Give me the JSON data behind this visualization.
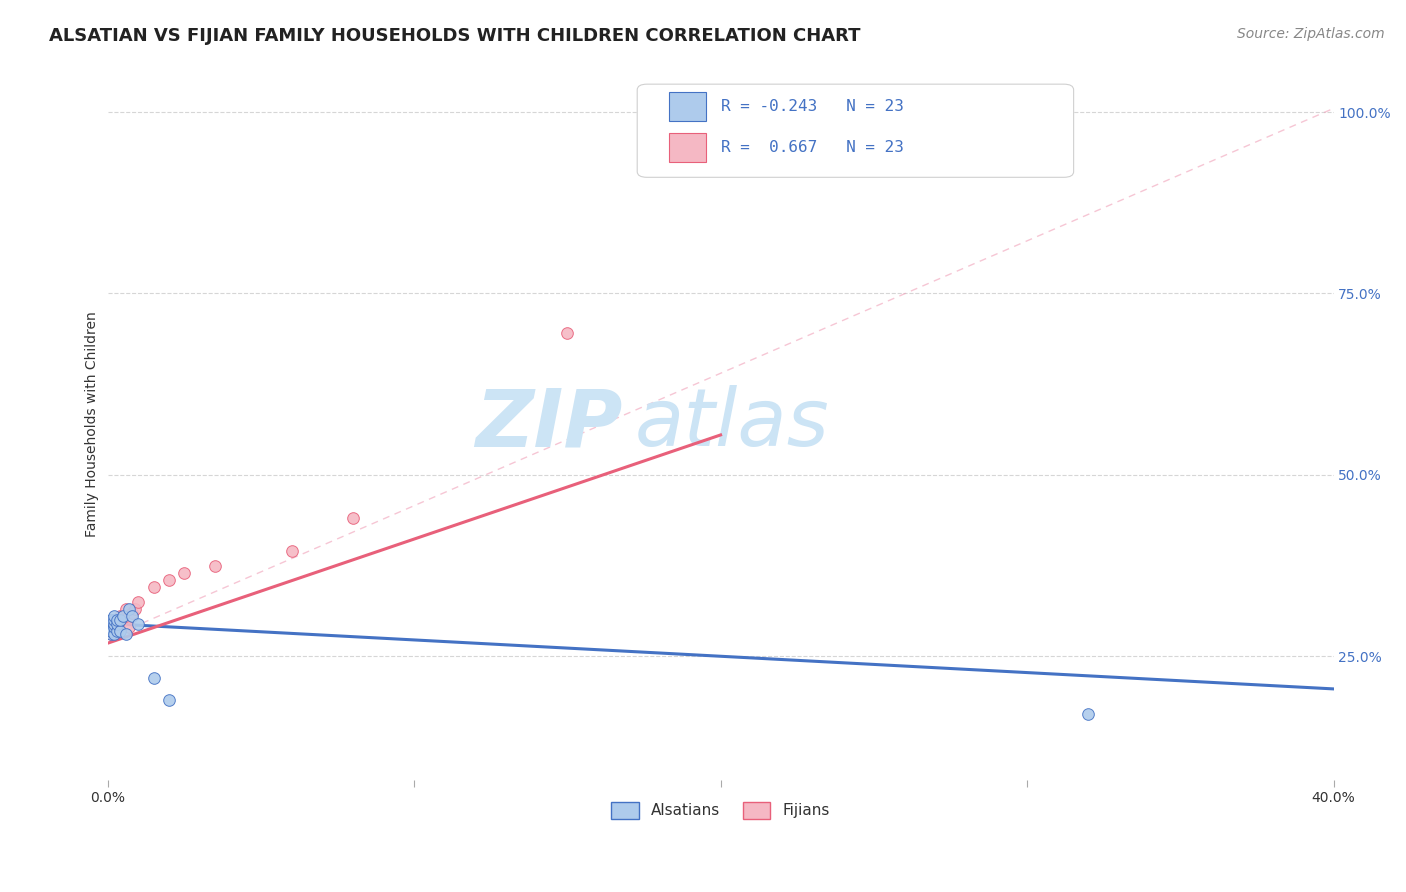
{
  "title": "ALSATIAN VS FIJIAN FAMILY HOUSEHOLDS WITH CHILDREN CORRELATION CHART",
  "source": "Source: ZipAtlas.com",
  "ylabel": "Family Households with Children",
  "xlim": [
    0.0,
    0.4
  ],
  "ylim": [
    0.08,
    1.06
  ],
  "xticks": [
    0.0,
    0.1,
    0.2,
    0.3,
    0.4
  ],
  "xtick_labels": [
    "0.0%",
    "",
    "",
    "",
    "40.0%"
  ],
  "yticks_right": [
    0.25,
    0.5,
    0.75,
    1.0
  ],
  "ytick_labels_right": [
    "25.0%",
    "50.0%",
    "75.0%",
    "100.0%"
  ],
  "r_alsatian": -0.243,
  "r_fijian": 0.667,
  "n_alsatian": 23,
  "n_fijian": 23,
  "alsatian_color": "#aecbec",
  "fijian_color": "#f5b8c4",
  "alsatian_line_color": "#4472c4",
  "fijian_line_color": "#e8607a",
  "legend_label_alsatian": "Alsatians",
  "legend_label_fijian": "Fijians",
  "alsatian_scatter_x": [
    0.001,
    0.001,
    0.001,
    0.001,
    0.001,
    0.002,
    0.002,
    0.002,
    0.002,
    0.002,
    0.003,
    0.003,
    0.003,
    0.004,
    0.004,
    0.005,
    0.006,
    0.007,
    0.008,
    0.01,
    0.015,
    0.02,
    0.32
  ],
  "alsatian_scatter_y": [
    0.28,
    0.29,
    0.3,
    0.285,
    0.3,
    0.28,
    0.29,
    0.295,
    0.3,
    0.305,
    0.285,
    0.295,
    0.3,
    0.285,
    0.3,
    0.305,
    0.28,
    0.315,
    0.305,
    0.295,
    0.22,
    0.19,
    0.17
  ],
  "fijian_scatter_x": [
    0.001,
    0.001,
    0.001,
    0.002,
    0.002,
    0.002,
    0.003,
    0.003,
    0.004,
    0.004,
    0.005,
    0.006,
    0.007,
    0.008,
    0.009,
    0.01,
    0.015,
    0.02,
    0.025,
    0.035,
    0.06,
    0.08,
    0.15
  ],
  "fijian_scatter_y": [
    0.28,
    0.285,
    0.295,
    0.29,
    0.295,
    0.3,
    0.29,
    0.295,
    0.295,
    0.305,
    0.305,
    0.315,
    0.29,
    0.31,
    0.315,
    0.325,
    0.345,
    0.355,
    0.365,
    0.375,
    0.395,
    0.44,
    0.695
  ],
  "alsatian_line_x": [
    0.0,
    0.4
  ],
  "alsatian_line_y": [
    0.295,
    0.205
  ],
  "fijian_line_x": [
    0.0,
    0.2
  ],
  "fijian_line_y": [
    0.268,
    0.555
  ],
  "diag_line_x": [
    0.0,
    0.4
  ],
  "diag_line_y": [
    0.275,
    1.005
  ],
  "watermark_zip": "ZIP",
  "watermark_atlas": "atlas",
  "watermark_color": "#cce4f5",
  "background_color": "#ffffff",
  "grid_color": "#e8e8e8",
  "title_fontsize": 13,
  "axis_label_fontsize": 10,
  "tick_fontsize": 10,
  "legend_fontsize": 11,
  "source_fontsize": 10
}
